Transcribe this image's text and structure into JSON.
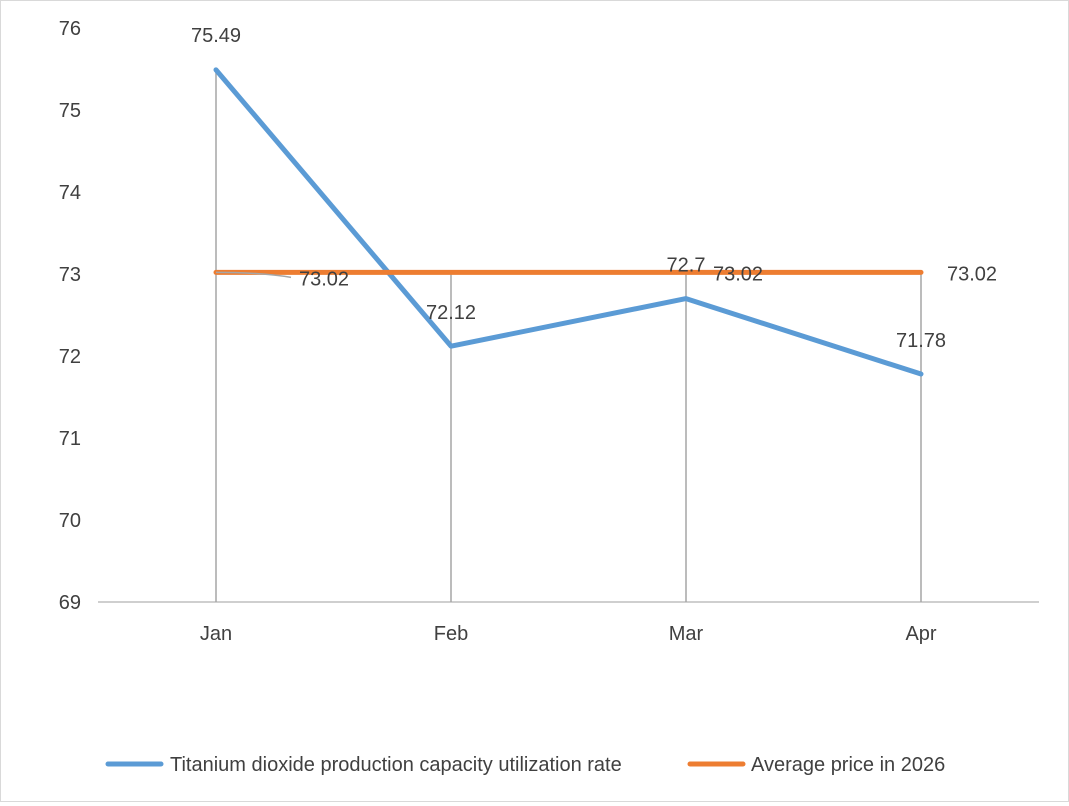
{
  "chart_data": {
    "type": "line",
    "categories": [
      "Jan",
      "Feb",
      "Mar",
      "Apr"
    ],
    "ylim": [
      69,
      76
    ],
    "yticks": [
      69,
      70,
      71,
      72,
      73,
      74,
      75,
      76
    ],
    "grid": false,
    "drop_lines": true,
    "legend_position": "bottom",
    "series": [
      {
        "name": "Titanium dioxide production capacity utilization rate",
        "values": [
          75.49,
          72.12,
          72.7,
          71.78
        ],
        "labels": [
          "75.49",
          "72.12",
          "72.7",
          "71.78"
        ],
        "color": "#5b9bd5"
      },
      {
        "name": "Average price in 2026",
        "values": [
          73.02,
          73.02,
          73.02,
          73.02
        ],
        "labels": [
          "73.02",
          "",
          "73.02",
          "73.02"
        ],
        "color": "#ed7d31"
      }
    ],
    "axis_color": "#bfbfbf",
    "drop_line_color": "#a6a6a6",
    "leader_line_color": "#a6a6a6"
  }
}
